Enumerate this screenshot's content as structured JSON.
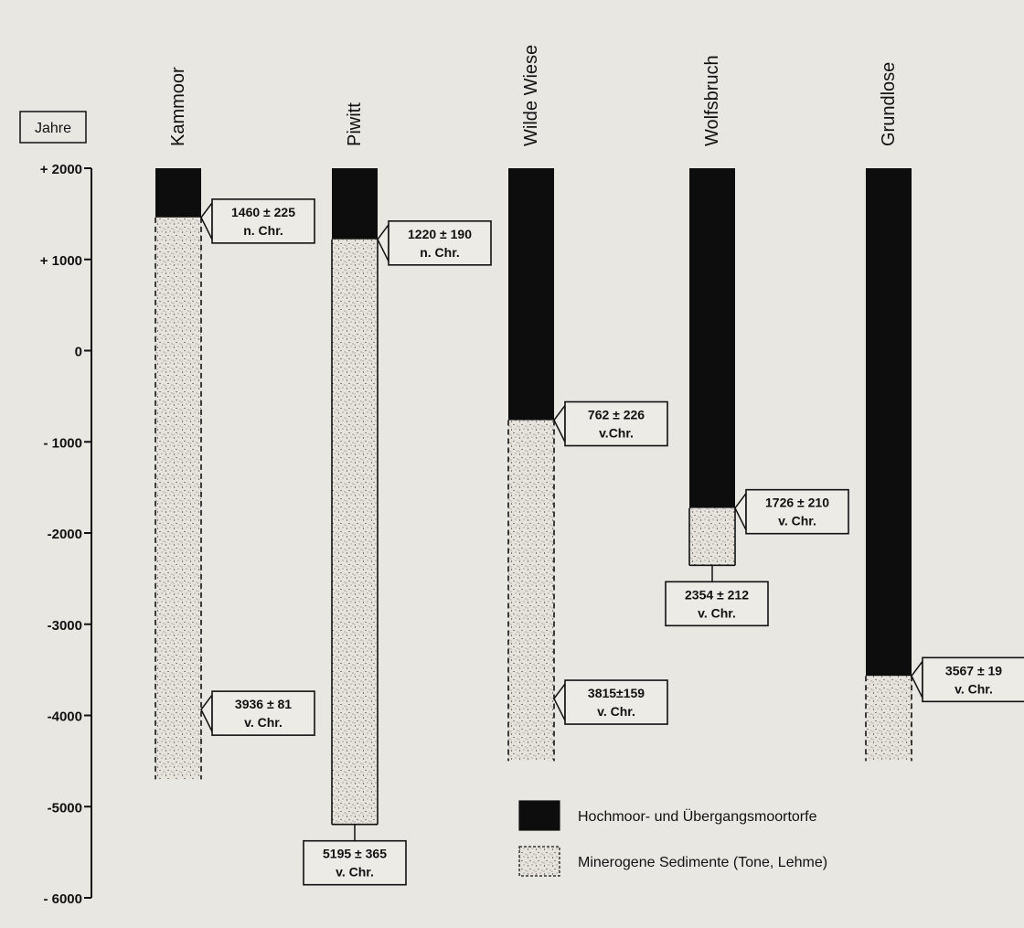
{
  "chart_data": {
    "type": "stratigraphic-columns",
    "title": "",
    "ylabel": "Jahre",
    "ylim": [
      -6000,
      2000
    ],
    "yticks": [
      2000,
      1000,
      0,
      -1000,
      -2000,
      -3000,
      -4000,
      -5000,
      -6000
    ],
    "ytick_labels": [
      "+ 2000",
      "+ 1000",
      "0",
      "- 1000",
      "-2000",
      "-3000",
      "-4000",
      "-5000",
      "- 6000"
    ],
    "columns": [
      {
        "name": "Kammoor",
        "top": 2000,
        "peat_bottom": 1460,
        "sediment_bottom": -4700,
        "sediment_bottom_closed": false,
        "dates": [
          {
            "value": 1460,
            "line1": "1460 ± 225",
            "line2": "n. Chr."
          },
          {
            "value": -3936,
            "line1": "3936 ± 81",
            "line2": "v. Chr."
          }
        ]
      },
      {
        "name": "Piwitt",
        "top": 2000,
        "peat_bottom": 1220,
        "sediment_bottom": -5195,
        "sediment_bottom_closed": true,
        "dates": [
          {
            "value": 1220,
            "line1": "1220 ± 190",
            "line2": "n. Chr."
          },
          {
            "value": -5195,
            "line1": "5195 ± 365",
            "line2": "v. Chr."
          }
        ]
      },
      {
        "name": "Wilde Wiese",
        "top": 2000,
        "peat_bottom": -762,
        "sediment_bottom": -4500,
        "sediment_bottom_closed": false,
        "dates": [
          {
            "value": -762,
            "line1": "762 ± 226",
            "line2": "v.Chr."
          },
          {
            "value": -3815,
            "line1": "3815±159",
            "line2": "v. Chr."
          }
        ]
      },
      {
        "name": "Wolfsbruch",
        "top": 2000,
        "peat_bottom": -1726,
        "sediment_bottom": -2354,
        "sediment_bottom_closed": true,
        "dates": [
          {
            "value": -1726,
            "line1": "1726 ± 210",
            "line2": "v. Chr."
          },
          {
            "value": -2354,
            "line1": "2354 ± 212",
            "line2": "v. Chr."
          }
        ]
      },
      {
        "name": "Grundlose",
        "top": 2000,
        "peat_bottom": -3567,
        "sediment_bottom": -4500,
        "sediment_bottom_closed": false,
        "dates": [
          {
            "value": -3567,
            "line1": "3567 ± 19",
            "line2": "v. Chr."
          }
        ]
      }
    ],
    "legend": [
      {
        "label": "Hochmoor- und Übergangsmoortorfe",
        "pattern": "solid-black"
      },
      {
        "label": "Minerogene Sedimente (Tone, Lehme)",
        "pattern": "stippled"
      }
    ],
    "legend_position": "bottom-right",
    "colors": {
      "peat": "#0d0d0d",
      "sediment": "#e6e3dc",
      "background": "#e9e7e2",
      "ink": "#111111"
    }
  }
}
